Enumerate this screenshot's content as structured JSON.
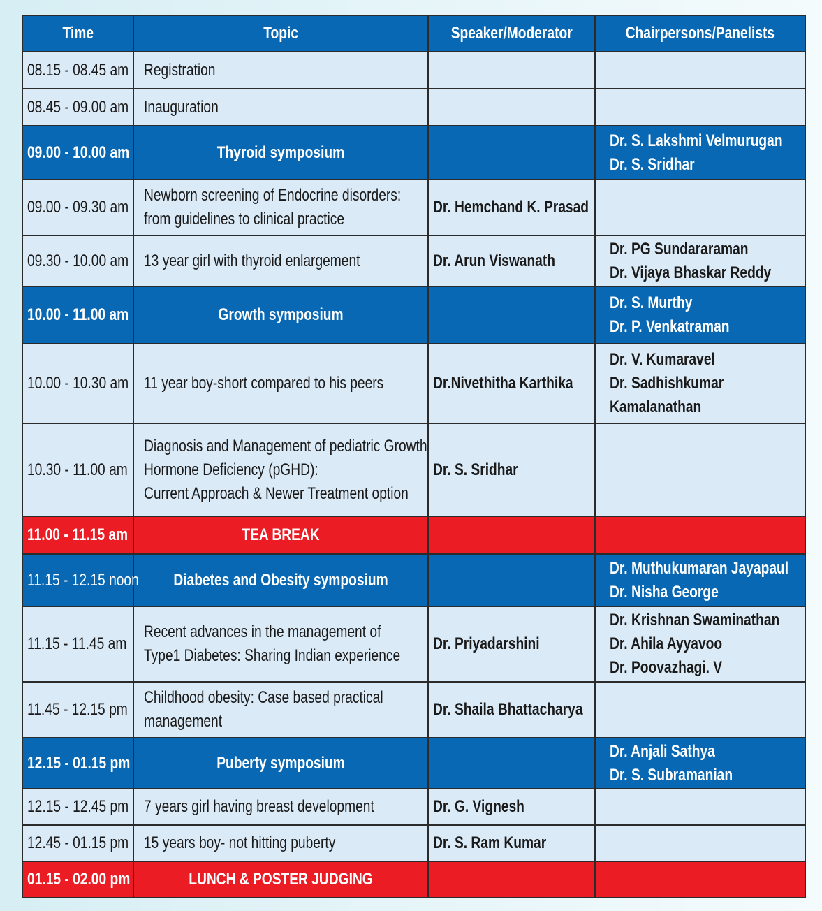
{
  "headers": {
    "time": "Time",
    "topic": "Topic",
    "speaker": "Speaker/Moderator",
    "chairs": "Chairpersons/Panelists"
  },
  "colors": {
    "header_blue": "#0868b3",
    "row_light": "#dbeaf7",
    "break_red": "#ec1c24"
  },
  "rows": [
    {
      "type": "normal",
      "time": "08.15 - 08.45 am",
      "topic": [
        "Registration"
      ],
      "speaker": "",
      "chairs": []
    },
    {
      "type": "normal",
      "time": "08.45 - 09.00 am",
      "topic": [
        "Inauguration"
      ],
      "speaker": "",
      "chairs": []
    },
    {
      "type": "symposium",
      "time": "09.00 - 10.00 am",
      "topic": [
        "Thyroid symposium"
      ],
      "speaker": "",
      "chairs": [
        "Dr. S. Lakshmi Velmurugan",
        "Dr. S. Sridhar"
      ]
    },
    {
      "type": "normal",
      "time": "09.00 - 09.30 am",
      "topic": [
        "Newborn screening of Endocrine disorders:",
        "from guidelines to clinical practice"
      ],
      "speaker": "Dr. Hemchand K. Prasad",
      "chairs": []
    },
    {
      "type": "normal",
      "time": "09.30 - 10.00 am",
      "topic": [
        "13 year girl with thyroid enlargement"
      ],
      "speaker": "Dr. Arun Viswanath",
      "chairs": [
        "Dr. PG Sundararaman",
        "Dr. Vijaya Bhaskar Reddy"
      ]
    },
    {
      "type": "symposium",
      "time": "10.00 - 11.00 am",
      "topic": [
        "Growth symposium"
      ],
      "speaker": "",
      "chairs": [
        "Dr. S. Murthy",
        "Dr. P. Venkatraman"
      ]
    },
    {
      "type": "normal",
      "time": "10.00 - 10.30 am",
      "topic": [
        "11 year boy-short compared to his peers"
      ],
      "speaker": "Dr.Nivethitha Karthika",
      "chairs": [
        "Dr. V. Kumaravel",
        "Dr. Sadhishkumar",
        "Kamalanathan"
      ]
    },
    {
      "type": "normal",
      "time": "10.30 - 11.00 am",
      "topic": [
        "Diagnosis and Management of pediatric Growth",
        "Hormone Deficiency (pGHD):",
        "Current Approach & Newer Treatment option"
      ],
      "speaker": "Dr. S. Sridhar",
      "chairs": []
    },
    {
      "type": "break",
      "time": "11.00 - 11.15 am",
      "topic": [
        "TEA BREAK"
      ],
      "speaker": "",
      "chairs": []
    },
    {
      "type": "symposium",
      "time": "11.15 - 12.15 noon",
      "time_regular": true,
      "topic": [
        "Diabetes and Obesity symposium"
      ],
      "speaker": "",
      "chairs": [
        "Dr. Muthukumaran Jayapaul",
        "Dr. Nisha George"
      ]
    },
    {
      "type": "normal",
      "time": "11.15 - 11.45 am",
      "topic": [
        "Recent advances in the management of",
        "Type1 Diabetes: Sharing Indian experience"
      ],
      "speaker": "Dr. Priyadarshini",
      "chairs": [
        "Dr. Krishnan Swaminathan",
        "Dr. Ahila Ayyavoo",
        "Dr. Poovazhagi. V"
      ]
    },
    {
      "type": "normal",
      "time": "11.45 - 12.15 pm",
      "topic": [
        "Childhood obesity: Case based practical",
        "management"
      ],
      "speaker": "Dr. Shaila Bhattacharya",
      "chairs": []
    },
    {
      "type": "symposium",
      "time": "12.15 - 01.15 pm",
      "topic": [
        "Puberty symposium"
      ],
      "speaker": "",
      "chairs": [
        "Dr. Anjali Sathya",
        "Dr. S. Subramanian"
      ]
    },
    {
      "type": "normal",
      "time": "12.15 - 12.45 pm",
      "topic": [
        "7 years girl having breast development"
      ],
      "speaker": "Dr. G. Vignesh",
      "chairs": []
    },
    {
      "type": "normal",
      "time": "12.45 - 01.15 pm",
      "topic": [
        "15 years boy- not hitting puberty"
      ],
      "speaker": "Dr. S. Ram Kumar",
      "chairs": []
    },
    {
      "type": "break",
      "time": "01.15 - 02.00 pm",
      "topic": [
        "LUNCH & POSTER JUDGING"
      ],
      "speaker": "",
      "chairs": []
    }
  ]
}
